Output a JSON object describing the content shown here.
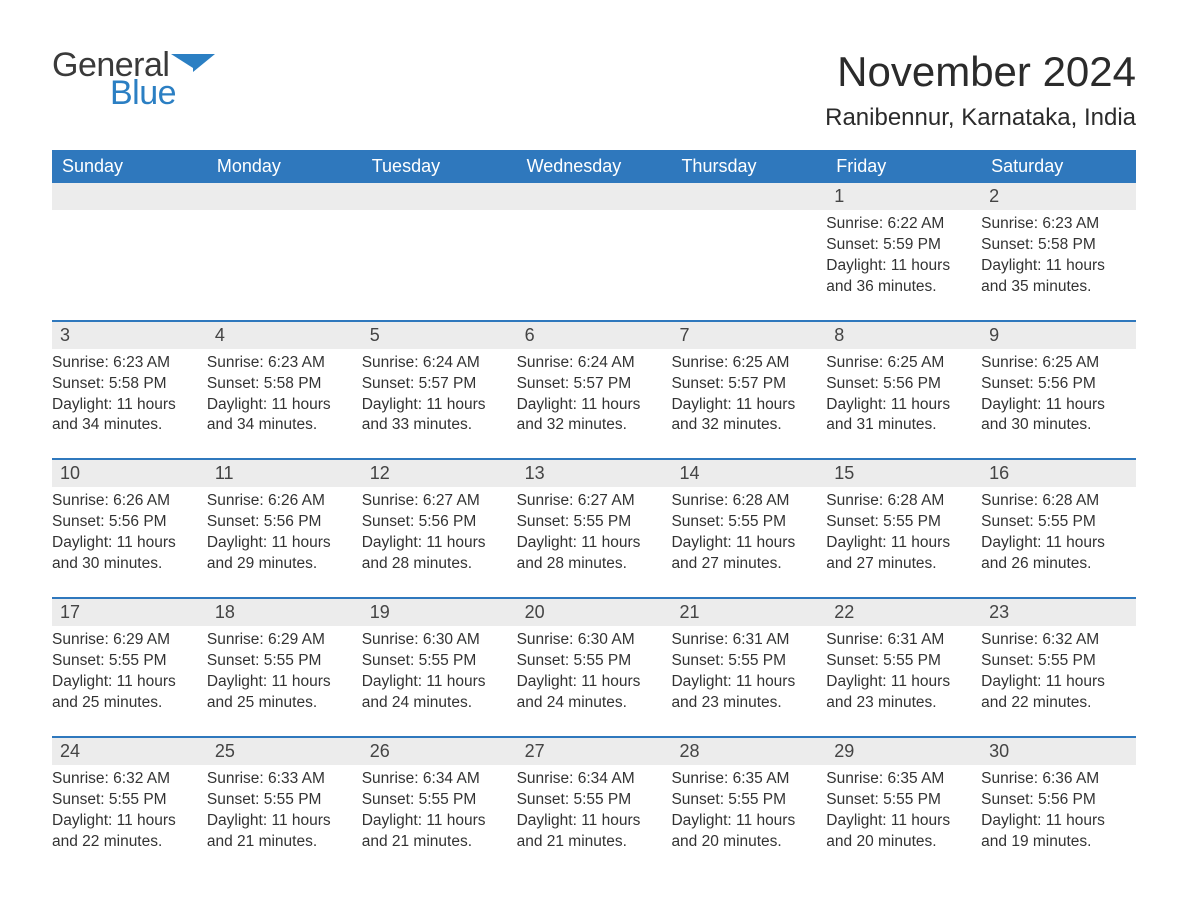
{
  "logo": {
    "text_general": "General",
    "text_blue": "Blue",
    "accent_color": "#2b7fc3"
  },
  "title": "November 2024",
  "location": "Ranibennur, Karnataka, India",
  "colors": {
    "header_bg": "#2f78bd",
    "header_text": "#ffffff",
    "daynum_bg": "#ececec",
    "row_border": "#2f78bd",
    "body_text": "#333333",
    "page_bg": "#ffffff"
  },
  "day_headers": [
    "Sunday",
    "Monday",
    "Tuesday",
    "Wednesday",
    "Thursday",
    "Friday",
    "Saturday"
  ],
  "weeks": [
    [
      {
        "empty": true
      },
      {
        "empty": true
      },
      {
        "empty": true
      },
      {
        "empty": true
      },
      {
        "empty": true
      },
      {
        "num": "1",
        "sunrise": "Sunrise: 6:22 AM",
        "sunset": "Sunset: 5:59 PM",
        "daylight": "Daylight: 11 hours and 36 minutes."
      },
      {
        "num": "2",
        "sunrise": "Sunrise: 6:23 AM",
        "sunset": "Sunset: 5:58 PM",
        "daylight": "Daylight: 11 hours and 35 minutes."
      }
    ],
    [
      {
        "num": "3",
        "sunrise": "Sunrise: 6:23 AM",
        "sunset": "Sunset: 5:58 PM",
        "daylight": "Daylight: 11 hours and 34 minutes."
      },
      {
        "num": "4",
        "sunrise": "Sunrise: 6:23 AM",
        "sunset": "Sunset: 5:58 PM",
        "daylight": "Daylight: 11 hours and 34 minutes."
      },
      {
        "num": "5",
        "sunrise": "Sunrise: 6:24 AM",
        "sunset": "Sunset: 5:57 PM",
        "daylight": "Daylight: 11 hours and 33 minutes."
      },
      {
        "num": "6",
        "sunrise": "Sunrise: 6:24 AM",
        "sunset": "Sunset: 5:57 PM",
        "daylight": "Daylight: 11 hours and 32 minutes."
      },
      {
        "num": "7",
        "sunrise": "Sunrise: 6:25 AM",
        "sunset": "Sunset: 5:57 PM",
        "daylight": "Daylight: 11 hours and 32 minutes."
      },
      {
        "num": "8",
        "sunrise": "Sunrise: 6:25 AM",
        "sunset": "Sunset: 5:56 PM",
        "daylight": "Daylight: 11 hours and 31 minutes."
      },
      {
        "num": "9",
        "sunrise": "Sunrise: 6:25 AM",
        "sunset": "Sunset: 5:56 PM",
        "daylight": "Daylight: 11 hours and 30 minutes."
      }
    ],
    [
      {
        "num": "10",
        "sunrise": "Sunrise: 6:26 AM",
        "sunset": "Sunset: 5:56 PM",
        "daylight": "Daylight: 11 hours and 30 minutes."
      },
      {
        "num": "11",
        "sunrise": "Sunrise: 6:26 AM",
        "sunset": "Sunset: 5:56 PM",
        "daylight": "Daylight: 11 hours and 29 minutes."
      },
      {
        "num": "12",
        "sunrise": "Sunrise: 6:27 AM",
        "sunset": "Sunset: 5:56 PM",
        "daylight": "Daylight: 11 hours and 28 minutes."
      },
      {
        "num": "13",
        "sunrise": "Sunrise: 6:27 AM",
        "sunset": "Sunset: 5:55 PM",
        "daylight": "Daylight: 11 hours and 28 minutes."
      },
      {
        "num": "14",
        "sunrise": "Sunrise: 6:28 AM",
        "sunset": "Sunset: 5:55 PM",
        "daylight": "Daylight: 11 hours and 27 minutes."
      },
      {
        "num": "15",
        "sunrise": "Sunrise: 6:28 AM",
        "sunset": "Sunset: 5:55 PM",
        "daylight": "Daylight: 11 hours and 27 minutes."
      },
      {
        "num": "16",
        "sunrise": "Sunrise: 6:28 AM",
        "sunset": "Sunset: 5:55 PM",
        "daylight": "Daylight: 11 hours and 26 minutes."
      }
    ],
    [
      {
        "num": "17",
        "sunrise": "Sunrise: 6:29 AM",
        "sunset": "Sunset: 5:55 PM",
        "daylight": "Daylight: 11 hours and 25 minutes."
      },
      {
        "num": "18",
        "sunrise": "Sunrise: 6:29 AM",
        "sunset": "Sunset: 5:55 PM",
        "daylight": "Daylight: 11 hours and 25 minutes."
      },
      {
        "num": "19",
        "sunrise": "Sunrise: 6:30 AM",
        "sunset": "Sunset: 5:55 PM",
        "daylight": "Daylight: 11 hours and 24 minutes."
      },
      {
        "num": "20",
        "sunrise": "Sunrise: 6:30 AM",
        "sunset": "Sunset: 5:55 PM",
        "daylight": "Daylight: 11 hours and 24 minutes."
      },
      {
        "num": "21",
        "sunrise": "Sunrise: 6:31 AM",
        "sunset": "Sunset: 5:55 PM",
        "daylight": "Daylight: 11 hours and 23 minutes."
      },
      {
        "num": "22",
        "sunrise": "Sunrise: 6:31 AM",
        "sunset": "Sunset: 5:55 PM",
        "daylight": "Daylight: 11 hours and 23 minutes."
      },
      {
        "num": "23",
        "sunrise": "Sunrise: 6:32 AM",
        "sunset": "Sunset: 5:55 PM",
        "daylight": "Daylight: 11 hours and 22 minutes."
      }
    ],
    [
      {
        "num": "24",
        "sunrise": "Sunrise: 6:32 AM",
        "sunset": "Sunset: 5:55 PM",
        "daylight": "Daylight: 11 hours and 22 minutes."
      },
      {
        "num": "25",
        "sunrise": "Sunrise: 6:33 AM",
        "sunset": "Sunset: 5:55 PM",
        "daylight": "Daylight: 11 hours and 21 minutes."
      },
      {
        "num": "26",
        "sunrise": "Sunrise: 6:34 AM",
        "sunset": "Sunset: 5:55 PM",
        "daylight": "Daylight: 11 hours and 21 minutes."
      },
      {
        "num": "27",
        "sunrise": "Sunrise: 6:34 AM",
        "sunset": "Sunset: 5:55 PM",
        "daylight": "Daylight: 11 hours and 21 minutes."
      },
      {
        "num": "28",
        "sunrise": "Sunrise: 6:35 AM",
        "sunset": "Sunset: 5:55 PM",
        "daylight": "Daylight: 11 hours and 20 minutes."
      },
      {
        "num": "29",
        "sunrise": "Sunrise: 6:35 AM",
        "sunset": "Sunset: 5:55 PM",
        "daylight": "Daylight: 11 hours and 20 minutes."
      },
      {
        "num": "30",
        "sunrise": "Sunrise: 6:36 AM",
        "sunset": "Sunset: 5:56 PM",
        "daylight": "Daylight: 11 hours and 19 minutes."
      }
    ]
  ]
}
